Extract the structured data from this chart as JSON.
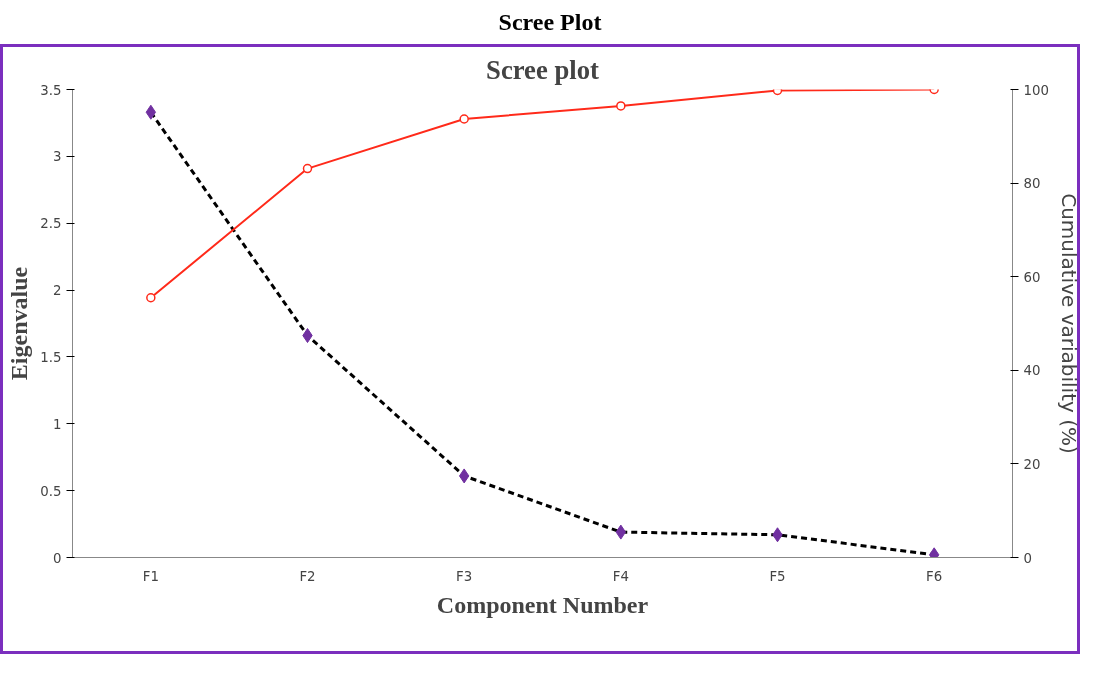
{
  "chart_data": {
    "type": "line",
    "title": "Scree Plot",
    "subtitle": "Scree plot",
    "xlabel": "Component Number",
    "ylabel": "Eigenvalue",
    "y2label": "Cumulative variability (%)",
    "categories": [
      "F1",
      "F2",
      "F3",
      "F4",
      "F5",
      "F6"
    ],
    "series": [
      {
        "color": "#000000",
        "values": [
          3.33,
          1.66,
          0.61,
          0.19,
          0.17,
          0.02
        ],
        "marker": "diamond",
        "line_style": "dashed"
      },
      {
        "color": "#ff2a1a",
        "values": [
          55.5,
          83.1,
          93.7,
          96.5,
          99.8,
          100
        ],
        "marker": "circle",
        "line_style": "solid",
        "axis": "y2"
      }
    ],
    "ylim": [
      0,
      3.5
    ],
    "yticks": [
      0,
      0.5,
      1,
      1.5,
      2,
      2.5,
      3,
      3.5
    ],
    "y2lim": [
      0,
      100
    ],
    "y2ticks": [
      0,
      20,
      40,
      60,
      80,
      100
    ],
    "grid": false
  }
}
